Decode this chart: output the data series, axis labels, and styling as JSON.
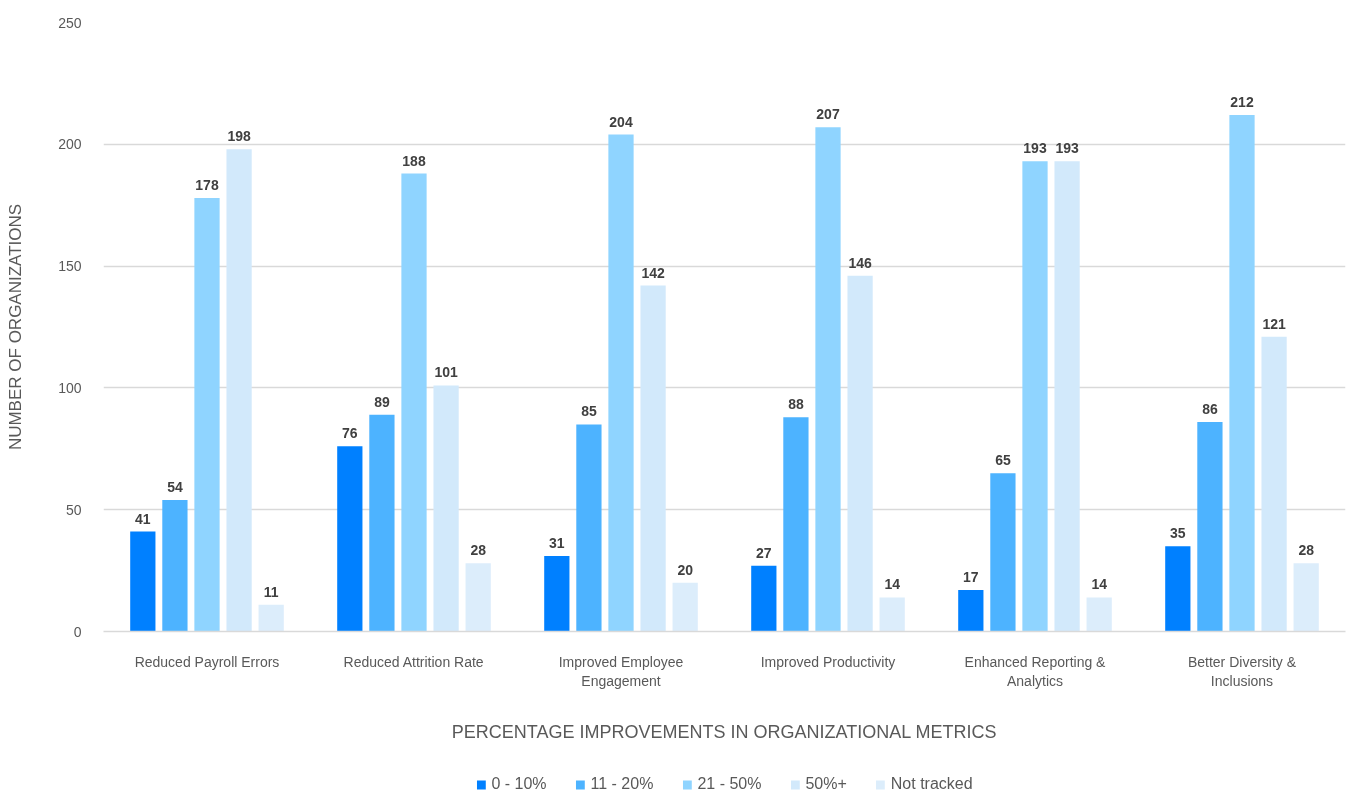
{
  "chart_data": {
    "type": "bar",
    "xlabel": "PERCENTAGE IMPROVEMENTS IN ORGANIZATIONAL METRICS",
    "ylabel": "NUMBER OF ORGANIZATIONS",
    "categories": [
      "Reduced Payroll Errors",
      "Reduced Attrition Rate",
      "Improved Employee Engagement",
      "Improved Productivity",
      "Enhanced Reporting & Analytics",
      "Better Diversity & Inclusions"
    ],
    "series": [
      {
        "name": "0 - 10%",
        "color": "#0080ff",
        "values": [
          41,
          76,
          31,
          27,
          17,
          35
        ]
      },
      {
        "name": "11 - 20%",
        "color": "#4db3ff",
        "values": [
          54,
          89,
          85,
          88,
          65,
          86
        ]
      },
      {
        "name": "21 - 50%",
        "color": "#8fd4ff",
        "values": [
          178,
          188,
          204,
          207,
          193,
          212
        ]
      },
      {
        "name": "50%+",
        "color": "#d2e9fb",
        "values": [
          198,
          101,
          142,
          146,
          193,
          121
        ]
      },
      {
        "name": "Not tracked",
        "color": "#dcedfb",
        "values": [
          11,
          28,
          20,
          14,
          14,
          28
        ]
      }
    ],
    "ylim": [
      0,
      250
    ],
    "yticks": [
      0,
      50,
      100,
      150,
      200,
      250
    ],
    "grid": "y",
    "legend": "bottom",
    "data_labels": true
  }
}
